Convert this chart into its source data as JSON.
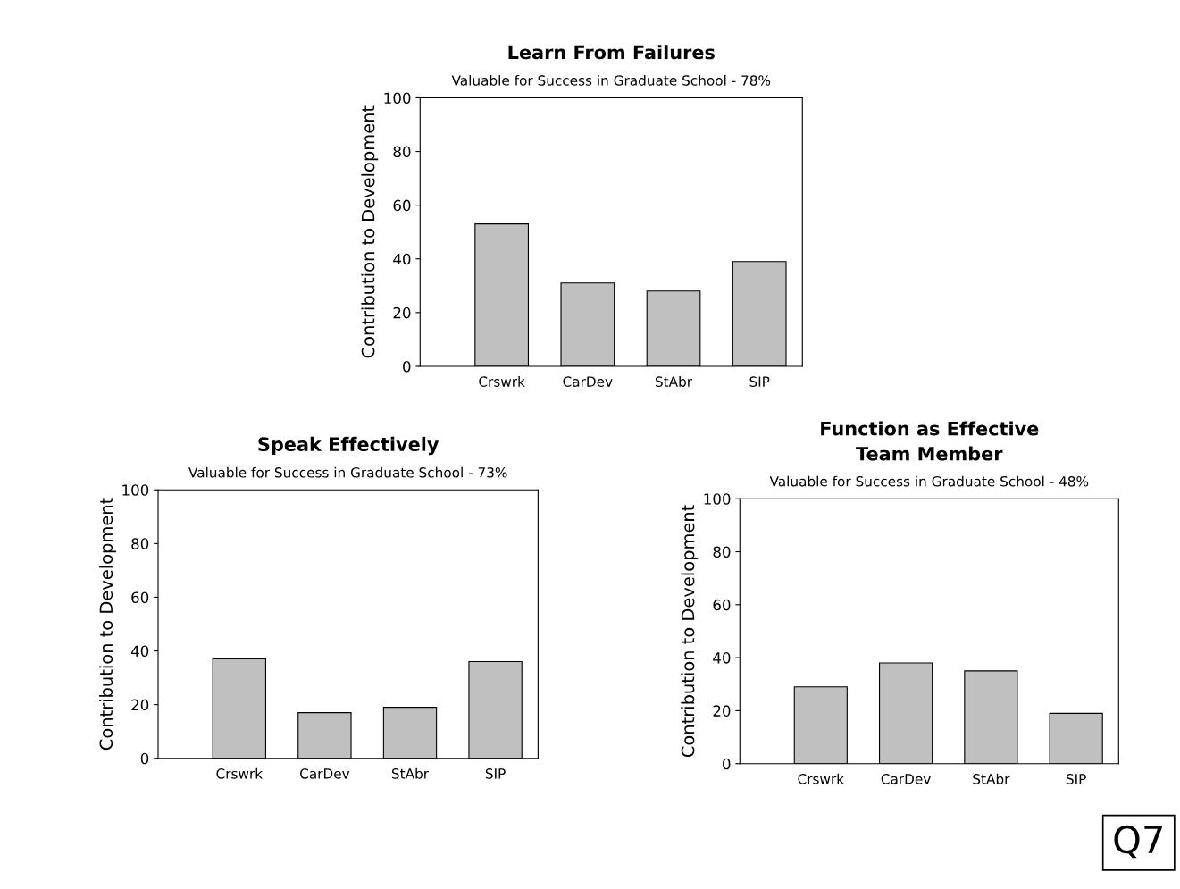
{
  "chart_data": [
    {
      "type": "bar",
      "title": "Learn From Failures",
      "subtitle": "Valuable for Success in Graduate School - 78%",
      "ylabel": "Contribution to Development",
      "categories": [
        "Crswrk",
        "CarDev",
        "StAbr",
        "SIP"
      ],
      "values": [
        53,
        31,
        28,
        39
      ],
      "color": "#c0c0c0",
      "ylim": [
        0,
        100
      ],
      "yticks": [
        0,
        20,
        40,
        60,
        80,
        100
      ],
      "grid": false
    },
    {
      "type": "bar",
      "title": "Speak Effectively",
      "subtitle": "Valuable for Success in Graduate School - 73%",
      "ylabel": "Contribution to Development",
      "categories": [
        "Crswrk",
        "CarDev",
        "StAbr",
        "SIP"
      ],
      "values": [
        37,
        17,
        19,
        36
      ],
      "color": "#c0c0c0",
      "ylim": [
        0,
        100
      ],
      "yticks": [
        0,
        20,
        40,
        60,
        80,
        100
      ],
      "grid": false
    },
    {
      "type": "bar",
      "title": "Function as Effective\nTeam Member",
      "subtitle": "Valuable for Success in Graduate School - 48%",
      "ylabel": "Contribution to Development",
      "categories": [
        "Crswrk",
        "CarDev",
        "StAbr",
        "SIP"
      ],
      "values": [
        29,
        38,
        35,
        19
      ],
      "color": "#c0c0c0",
      "ylim": [
        0,
        100
      ],
      "yticks": [
        0,
        20,
        40,
        60,
        80,
        100
      ],
      "grid": false,
      "annotations": [
        "Q7"
      ]
    }
  ]
}
